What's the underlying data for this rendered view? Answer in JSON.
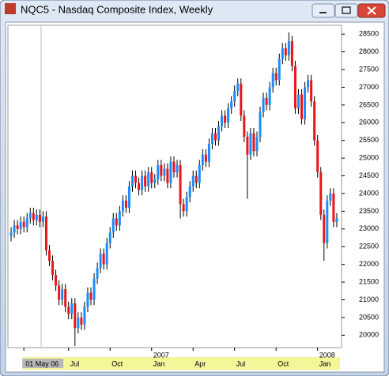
{
  "window": {
    "title": "NQC5 - Nasdaq Composite Index, Weekly"
  },
  "chart_data": {
    "type": "candlestick",
    "up_color": "#1a8cff",
    "down_color": "#e8161b",
    "wick_color": "#000000",
    "xlim": [
      -1,
      103.5
    ],
    "ylim": [
      19650,
      28750
    ],
    "yticks": [
      20000,
      20500,
      21000,
      21500,
      22000,
      22500,
      23000,
      23500,
      24000,
      24500,
      25000,
      25500,
      26000,
      26500,
      27000,
      27500,
      28000,
      28500
    ],
    "xticks": [
      {
        "value": 4,
        "label": "01 May 06"
      },
      {
        "value": 18,
        "label": "Jul"
      },
      {
        "value": 31,
        "label": "Oct"
      },
      {
        "value": 44,
        "label": "Jan"
      },
      {
        "value": 57,
        "label": "Apr"
      },
      {
        "value": 70,
        "label": "Jul"
      },
      {
        "value": 83,
        "label": "Oct"
      },
      {
        "value": 96,
        "label": "Jan"
      }
    ],
    "year_labels": [
      {
        "value": 44,
        "label": "2007"
      },
      {
        "value": 96,
        "label": "2008"
      }
    ],
    "open": [
      22800,
      22900,
      23100,
      23000,
      23200,
      23050,
      23300,
      23450,
      23250,
      23400,
      23200,
      23350,
      22400,
      22100,
      21700,
      21400,
      21000,
      21300,
      20800,
      20600,
      20900,
      20200,
      20500,
      20300,
      20800,
      21200,
      21000,
      21600,
      21900,
      22300,
      22000,
      22600,
      22900,
      23300,
      23100,
      23500,
      23800,
      23600,
      24200,
      24500,
      24300,
      24100,
      24500,
      24200,
      24600,
      24300,
      24400,
      24800,
      24500,
      24700,
      24300,
      24900,
      24600,
      24800,
      23700,
      23500,
      23900,
      24200,
      24500,
      24300,
      24800,
      25100,
      24900,
      25400,
      25700,
      25500,
      25900,
      26200,
      26000,
      26400,
      26600,
      26900,
      27100,
      26200,
      25600,
      25100,
      25700,
      25200,
      25600,
      26300,
      26700,
      26500,
      27000,
      27400,
      27200,
      27800,
      28100,
      27900,
      28300,
      27600,
      26400,
      26800,
      26100,
      27000,
      27200,
      26600,
      25500,
      24600,
      23400,
      22600,
      23800,
      24000,
      23200
    ],
    "high": [
      23050,
      23250,
      23250,
      23350,
      23350,
      23450,
      23600,
      23600,
      23550,
      23550,
      23500,
      23500,
      22550,
      22250,
      21850,
      21550,
      21450,
      21450,
      20950,
      21050,
      21050,
      20650,
      20650,
      20950,
      21350,
      21350,
      21750,
      22050,
      22450,
      22450,
      22750,
      23050,
      23450,
      23450,
      23650,
      23950,
      23950,
      24350,
      24650,
      24650,
      24450,
      24650,
      24650,
      24750,
      24750,
      24550,
      24950,
      24950,
      24850,
      24850,
      25050,
      25050,
      24950,
      24950,
      23850,
      24050,
      24350,
      24650,
      24650,
      24950,
      25250,
      25250,
      25550,
      25850,
      25850,
      26050,
      26350,
      26350,
      26550,
      26750,
      27050,
      27250,
      27250,
      26350,
      25750,
      25850,
      25850,
      25750,
      26450,
      26850,
      26850,
      27150,
      27550,
      27550,
      27950,
      28250,
      28250,
      28550,
      28450,
      27750,
      26950,
      26950,
      27150,
      27350,
      27350,
      26750,
      25650,
      24750,
      23550,
      23950,
      24150,
      24150,
      23450
    ],
    "low": [
      22650,
      22750,
      22850,
      22850,
      22900,
      22900,
      23150,
      23100,
      23100,
      23050,
      23050,
      22250,
      21950,
      21550,
      21250,
      20850,
      20850,
      20650,
      20450,
      20450,
      19700,
      20050,
      20150,
      20150,
      20650,
      20850,
      20850,
      21450,
      21750,
      21850,
      21850,
      22450,
      22750,
      22950,
      22950,
      23350,
      23450,
      23450,
      24050,
      24150,
      23950,
      23950,
      24050,
      24050,
      24150,
      24150,
      24250,
      24350,
      24350,
      24150,
      24150,
      24450,
      24450,
      23300,
      23350,
      23350,
      23750,
      24050,
      24150,
      24150,
      24650,
      24750,
      24750,
      25250,
      25350,
      25350,
      25750,
      25850,
      25850,
      26250,
      26450,
      26750,
      26050,
      25450,
      23850,
      24950,
      25050,
      25050,
      25450,
      26150,
      26350,
      26350,
      26850,
      27050,
      27050,
      27650,
      27750,
      27750,
      27450,
      26250,
      26250,
      25950,
      25950,
      26850,
      26450,
      25350,
      24450,
      23250,
      22100,
      22450,
      23650,
      23050,
      23050
    ],
    "close": [
      22900,
      23100,
      23000,
      23200,
      23050,
      23300,
      23450,
      23250,
      23400,
      23200,
      23350,
      22400,
      22100,
      21700,
      21400,
      21000,
      21300,
      20800,
      20600,
      20900,
      20200,
      20500,
      20300,
      20800,
      21200,
      21000,
      21600,
      21900,
      22300,
      22000,
      22600,
      22900,
      23300,
      23100,
      23500,
      23800,
      23600,
      24200,
      24500,
      24300,
      24100,
      24500,
      24200,
      24600,
      24300,
      24400,
      24800,
      24500,
      24700,
      24300,
      24900,
      24600,
      24800,
      23700,
      23500,
      23900,
      24200,
      24500,
      24300,
      24800,
      25100,
      24900,
      25400,
      25700,
      25500,
      25900,
      26200,
      26000,
      26400,
      26600,
      26900,
      27100,
      26200,
      25600,
      25100,
      25700,
      25200,
      25600,
      26300,
      26700,
      26500,
      27000,
      27400,
      27200,
      27800,
      28100,
      27900,
      28300,
      27600,
      26400,
      26800,
      26100,
      27000,
      27200,
      26600,
      25500,
      24600,
      23400,
      22600,
      23800,
      24000,
      23200,
      23300
    ]
  }
}
